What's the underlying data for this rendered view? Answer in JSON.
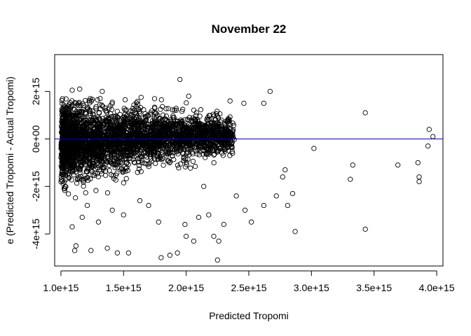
{
  "chart_data": {
    "type": "scatter",
    "title": "November 22",
    "xlabel": "Predicted Tropomi",
    "ylabel": "e (Predicted Tropomi - Actual Tropomi)",
    "xlim": [
      950000000000000.0,
      4050000000000000.0
    ],
    "ylim": [
      -5350000000000000.0,
      3550000000000000.0
    ],
    "x_ticks": [
      {
        "value": 1000000000000000.0,
        "label": "1.0e+15"
      },
      {
        "value": 1500000000000000.0,
        "label": "1.5e+15"
      },
      {
        "value": 2000000000000000.0,
        "label": "2.0e+15"
      },
      {
        "value": 2500000000000000.0,
        "label": "2.5e+15"
      },
      {
        "value": 3000000000000000.0,
        "label": "3.0e+15"
      },
      {
        "value": 3500000000000000.0,
        "label": "3.5e+15"
      },
      {
        "value": 4000000000000000.0,
        "label": "4.0e+15"
      }
    ],
    "y_ticks": [
      {
        "value": -4000000000000000.0,
        "label": "-4e+15"
      },
      {
        "value": -2000000000000000.0,
        "label": "-2e+15"
      },
      {
        "value": 0,
        "label": "0e+00"
      },
      {
        "value": 2000000000000000.0,
        "label": "2e+15"
      }
    ],
    "reference_line": {
      "y": 0,
      "color": "#0000cc"
    },
    "marker": "open-circle",
    "grid": false,
    "legend": "none",
    "points": [
      [
        1090000000000000.0,
        2050000000000000.0
      ],
      [
        1150000000000000.0,
        2100000000000000.0
      ],
      [
        1330000000000000.0,
        2000000000000000.0
      ],
      [
        1950000000000000.0,
        2500000000000000.0
      ],
      [
        2670000000000000.0,
        2000000000000000.0
      ],
      [
        2020000000000000.0,
        1800000000000000.0
      ],
      [
        2350000000000000.0,
        1600000000000000.0
      ],
      [
        2460000000000000.0,
        1500000000000000.0
      ],
      [
        2620000000000000.0,
        1500000000000000.0
      ],
      [
        1640000000000000.0,
        1750000000000000.0
      ],
      [
        3430000000000000.0,
        1100000000000000.0
      ],
      [
        3940000000000000.0,
        400000000000000.0
      ],
      [
        3970000000000000.0,
        100000000000000.0
      ],
      [
        3930000000000000.0,
        -300000000000000.0
      ],
      [
        3020000000000000.0,
        -400000000000000.0
      ],
      [
        3330000000000000.0,
        -1100000000000000.0
      ],
      [
        3310000000000000.0,
        -1700000000000000.0
      ],
      [
        3690000000000000.0,
        -1100000000000000.0
      ],
      [
        3850000000000000.0,
        -1000000000000000.0
      ],
      [
        3860000000000000.0,
        -1600000000000000.0
      ],
      [
        3860000000000000.0,
        -1800000000000000.0
      ],
      [
        3430000000000000.0,
        -3800000000000000.0
      ],
      [
        2870000000000000.0,
        -3900000000000000.0
      ],
      [
        2720000000000000.0,
        -2400000000000000.0
      ],
      [
        2850000000000000.0,
        -2300000000000000.0
      ],
      [
        2790000000000000.0,
        -1300000000000000.0
      ],
      [
        2810000000000000.0,
        -2800000000000000.0
      ],
      [
        2770000000000000.0,
        -1600000000000000.0
      ],
      [
        2620000000000000.0,
        -2800000000000000.0
      ],
      [
        2520000000000000.0,
        -3500000000000000.0
      ],
      [
        2470000000000000.0,
        -3000000000000000.0
      ],
      [
        2400000000000000.0,
        -2400000000000000.0
      ],
      [
        2300000000000000.0,
        -3600000000000000.0
      ],
      [
        2260000000000000.0,
        -4300000000000000.0
      ],
      [
        2250000000000000.0,
        -5100000000000000.0
      ],
      [
        2220000000000000.0,
        -4100000000000000.0
      ],
      [
        2180000000000000.0,
        -3200000000000000.0
      ],
      [
        2140000000000000.0,
        -2000000000000000.0
      ],
      [
        2100000000000000.0,
        -3300000000000000.0
      ],
      [
        2060000000000000.0,
        -4300000000000000.0
      ],
      [
        1990000000000000.0,
        -3600000000000000.0
      ],
      [
        1930000000000000.0,
        -4800000000000000.0
      ],
      [
        1870000000000000.0,
        -4900000000000000.0
      ],
      [
        1800000000000000.0,
        -5000000000000000.0
      ],
      [
        1780000000000000.0,
        -3500000000000000.0
      ],
      [
        1700000000000000.0,
        -2800000000000000.0
      ],
      [
        1630000000000000.0,
        -2600000000000000.0
      ],
      [
        1540000000000000.0,
        -4800000000000000.0
      ],
      [
        1450000000000000.0,
        -4800000000000000.0
      ],
      [
        1410000000000000.0,
        -3000000000000000.0
      ],
      [
        1370000000000000.0,
        -4600000000000000.0
      ],
      [
        1300000000000000.0,
        -3500000000000000.0
      ],
      [
        1240000000000000.0,
        -4700000000000000.0
      ],
      [
        1170000000000000.0,
        -3300000000000000.0
      ],
      [
        1120000000000000.0,
        -4500000000000000.0
      ],
      [
        1110000000000000.0,
        -4700000000000000.0
      ],
      [
        1090000000000000.0,
        -3700000000000000.0
      ],
      [
        1210000000000000.0,
        -2800000000000000.0
      ],
      [
        1500000000000000.0,
        -3200000000000000.0
      ],
      [
        2000000000000000.0,
        -4100000000000000.0
      ]
    ],
    "dense_cloud": {
      "note": "thousands of overlapping residual points",
      "x_range": [
        1000000000000000.0,
        2900000000000000.0
      ],
      "y_center": 0,
      "spread_at_x_min": [
        -2600000000000000.0,
        1700000000000000.0
      ]
    }
  }
}
